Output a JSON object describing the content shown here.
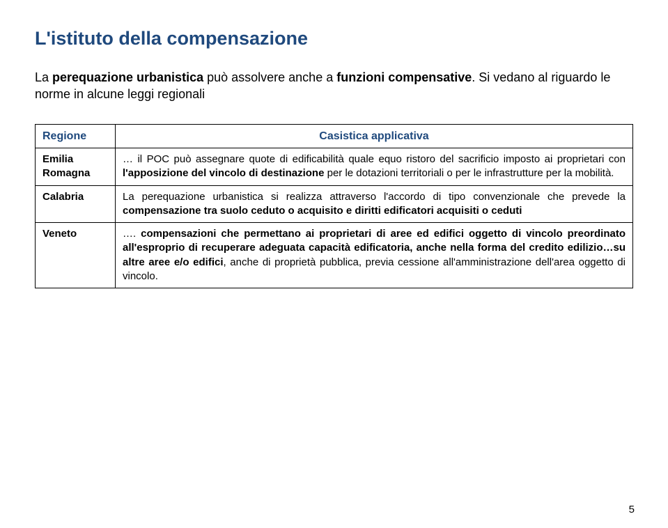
{
  "title": "L'istituto della compensazione",
  "intro_parts": {
    "pre": "La ",
    "bold1": "perequazione urbanistica",
    "mid": " può assolvere anche a ",
    "bold2": "funzioni compensative",
    "post": ". Si vedano al riguardo le norme in alcune leggi regionali"
  },
  "table": {
    "header_region": "Regione",
    "header_casistica": "Casistica applicativa",
    "rows": [
      {
        "region": "Emilia Romagna",
        "text_pre": "… il POC può assegnare quote di edificabilità quale equo ristoro del sacrificio imposto ai proprietari con ",
        "text_bold1": "l'apposizione del vincolo di destinazione",
        "text_mid1": " per le dotazioni territoriali o per le infrastrutture per la mobilità.",
        "text_bold2": "",
        "text_mid2": "",
        "text_bold3": "",
        "text_post": ""
      },
      {
        "region": "Calabria",
        "text_pre": "La perequazione urbanistica si realizza attraverso l'accordo di tipo convenzionale che prevede la ",
        "text_bold1": "compensazione tra suolo ceduto o acquisito e diritti edificatori acquisiti o ceduti",
        "text_mid1": "",
        "text_bold2": "",
        "text_mid2": "",
        "text_bold3": "",
        "text_post": ""
      },
      {
        "region": "Veneto",
        "text_pre": "…. ",
        "text_bold1": "compensazioni che permettano ai proprietari di aree ed edifici oggetto di vincolo preordinato all'esproprio di recuperare adeguata capacità edificatoria, anche nella forma del credito edilizio…su altre aree e/o edifici",
        "text_mid1": ", anche di proprietà pubblica, previa cessione all'amministrazione dell'area oggetto di vincolo.",
        "text_bold2": "",
        "text_mid2": "",
        "text_bold3": "",
        "text_post": ""
      }
    ]
  },
  "page_number": "5",
  "colors": {
    "title": "#1f497d",
    "header_text": "#1f497d",
    "body_text": "#000000",
    "border": "#000000",
    "background": "#ffffff"
  },
  "fonts": {
    "title_size_pt": 20,
    "intro_size_pt": 14,
    "table_header_size_pt": 12,
    "table_body_size_pt": 11
  }
}
